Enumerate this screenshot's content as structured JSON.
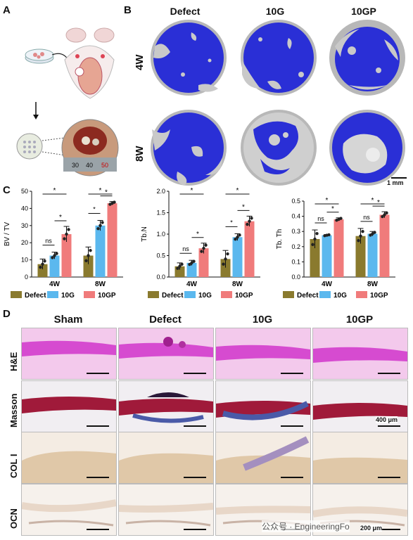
{
  "panels": {
    "A": "A",
    "B": "B",
    "C": "C",
    "D": "D"
  },
  "panelA": {
    "ruler_numbers": [
      "30",
      "40",
      "50"
    ]
  },
  "panelB": {
    "columns": [
      "Defect",
      "10G",
      "10GP"
    ],
    "rows": [
      "4W",
      "8W"
    ],
    "scale_bar": "1 mm",
    "colors": {
      "bone": "#2a2fd6",
      "shell": "#b8b8b8"
    }
  },
  "chart_data": [
    {
      "type": "bar",
      "ylabel": "BV / TV",
      "ylim": [
        0,
        50
      ],
      "yticks": [
        "0",
        "10",
        "20",
        "30",
        "40",
        "50"
      ],
      "categories": [
        "4W",
        "8W"
      ],
      "series": [
        {
          "name": "Defect",
          "values": [
            7.5,
            12.5
          ],
          "errors": [
            3,
            5
          ]
        },
        {
          "name": "10G",
          "values": [
            12.5,
            30
          ],
          "errors": [
            2,
            3
          ]
        },
        {
          "name": "10GP",
          "values": [
            25,
            43
          ],
          "errors": [
            4.5,
            1
          ]
        }
      ],
      "sig_labels": [
        "*",
        "ns",
        "*",
        "*",
        "*",
        "*"
      ]
    },
    {
      "type": "bar",
      "ylabel": "Tb.N",
      "ylim": [
        0,
        2.0
      ],
      "yticks": [
        "0.0",
        "0.5",
        "1.0",
        "1.5",
        "2.0"
      ],
      "categories": [
        "4W",
        "8W"
      ],
      "series": [
        {
          "name": "Defect",
          "values": [
            0.25,
            0.42
          ],
          "errors": [
            0.08,
            0.2
          ]
        },
        {
          "name": "10G",
          "values": [
            0.33,
            0.93
          ],
          "errors": [
            0.06,
            0.08
          ]
        },
        {
          "name": "10GP",
          "values": [
            0.67,
            1.3
          ],
          "errors": [
            0.12,
            0.12
          ]
        }
      ],
      "sig_labels": [
        "*",
        "ns",
        "*",
        "*",
        "*",
        "*"
      ]
    },
    {
      "type": "bar",
      "ylabel": "Tb. Th",
      "ylim": [
        0,
        0.5
      ],
      "yticks": [
        "0.0",
        "0.1",
        "0.2",
        "0.3",
        "0.4",
        "0.5"
      ],
      "categories": [
        "4W",
        "8W"
      ],
      "series": [
        {
          "name": "Defect",
          "values": [
            0.25,
            0.27
          ],
          "errors": [
            0.06,
            0.05
          ]
        },
        {
          "name": "10G",
          "values": [
            0.275,
            0.285
          ],
          "errors": [
            0.005,
            0.015
          ]
        },
        {
          "name": "10GP",
          "values": [
            0.38,
            0.41
          ],
          "errors": [
            0.01,
            0.02
          ]
        }
      ],
      "sig_labels": [
        "*",
        "ns",
        "*",
        "*",
        "ns",
        "*"
      ]
    }
  ],
  "legend": [
    "Defect",
    "10G",
    "10GP"
  ],
  "series_colors": [
    "#8a7a2e",
    "#5bb8ee",
    "#f07b7b"
  ],
  "panelD": {
    "columns": [
      "Sham",
      "Defect",
      "10G",
      "10GP"
    ],
    "rows": [
      "H&E",
      "Masson",
      "COL I",
      "OCN"
    ],
    "scale_400": "400 μm",
    "scale_200": "200 μm",
    "watermark": "公众号 · EngineeringFo"
  }
}
